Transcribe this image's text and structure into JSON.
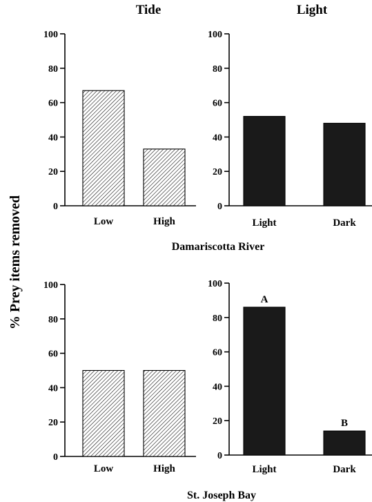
{
  "figure": {
    "column_titles": [
      "Tide",
      "Light"
    ],
    "row_labels": [
      "Damariscotta River",
      "St. Joseph Bay"
    ],
    "ylabel": "% Prey items removed"
  },
  "chart_data": [
    {
      "type": "bar",
      "panel": "Damariscotta River - Tide",
      "categories": [
        "Low",
        "High"
      ],
      "values": [
        67,
        33
      ],
      "ylim": [
        0,
        100
      ],
      "yticks": [
        0,
        20,
        40,
        60,
        80,
        100
      ],
      "bar_style": "hatched",
      "bar_labels": [
        "",
        ""
      ]
    },
    {
      "type": "bar",
      "panel": "Damariscotta River - Light",
      "categories": [
        "Light",
        "Dark"
      ],
      "values": [
        52,
        48
      ],
      "ylim": [
        0,
        100
      ],
      "yticks": [
        0,
        20,
        40,
        60,
        80,
        100
      ],
      "bar_style": "solid",
      "bar_color": "#1a1a1a",
      "bar_labels": [
        "",
        ""
      ]
    },
    {
      "type": "bar",
      "panel": "St. Joseph Bay - Tide",
      "categories": [
        "Low",
        "High"
      ],
      "values": [
        50,
        50
      ],
      "ylim": [
        0,
        100
      ],
      "yticks": [
        0,
        20,
        40,
        60,
        80,
        100
      ],
      "bar_style": "hatched",
      "bar_labels": [
        "",
        ""
      ]
    },
    {
      "type": "bar",
      "panel": "St. Joseph Bay - Light",
      "categories": [
        "Light",
        "Dark"
      ],
      "values": [
        86,
        14
      ],
      "ylim": [
        0,
        100
      ],
      "yticks": [
        0,
        20,
        40,
        60,
        80,
        100
      ],
      "bar_style": "solid",
      "bar_color": "#1a1a1a",
      "bar_labels": [
        "A",
        "B"
      ]
    }
  ]
}
